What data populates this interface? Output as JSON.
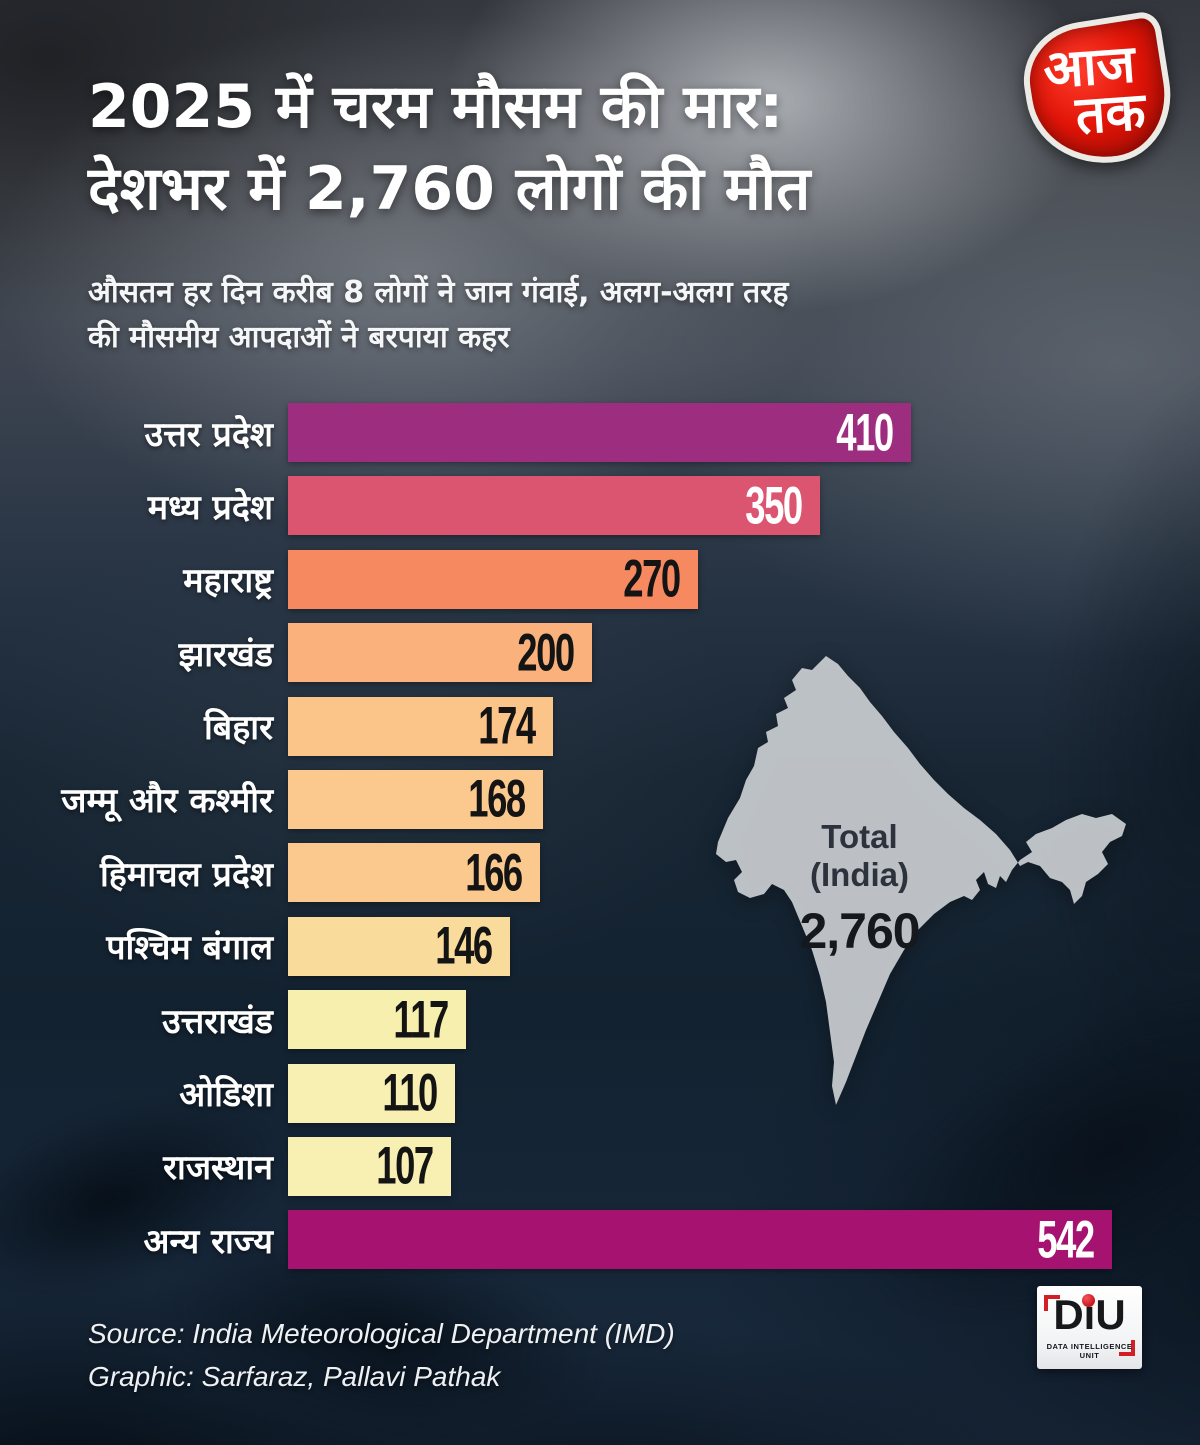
{
  "brand": {
    "line1": "आज",
    "line2": "तक"
  },
  "header": {
    "title_line1": "2025 में चरम मौसम की मार:",
    "title_line2": "देशभर में 2,760 लोगों की मौत",
    "subtitle_line1": "औसतन हर दिन करीब 8 लोगों ने जान गंवाई, अलग-अलग तरह",
    "subtitle_line2": "की मौसमीय आपदाओं ने बरपाया कहर"
  },
  "chart_data": {
    "type": "bar",
    "orientation": "horizontal",
    "title": "2025 में चरम मौसम की मार: देशभर में 2,760 लोगों की मौत",
    "categories": [
      "उत्तर प्रदेश",
      "मध्य प्रदेश",
      "महाराष्ट्र",
      "झारखंड",
      "बिहार",
      "जम्मू और कश्मीर",
      "हिमाचल प्रदेश",
      "पश्चिम बंगाल",
      "उत्तराखंड",
      "ओडिशा",
      "राजस्थान",
      "अन्य राज्य"
    ],
    "values": [
      410,
      350,
      270,
      200,
      174,
      168,
      166,
      146,
      117,
      110,
      107,
      542
    ],
    "bars": [
      {
        "label": "उत्तर प्रदेश",
        "value": 410,
        "display": "410",
        "color": "#9D2E7F",
        "value_color": "#FFFFFF"
      },
      {
        "label": "मध्य प्रदेश",
        "value": 350,
        "display": "350",
        "color": "#DC5570",
        "value_color": "#FFFFFF"
      },
      {
        "label": "महाराष्ट्र",
        "value": 270,
        "display": "270",
        "color": "#F68960",
        "value_color": "#141414"
      },
      {
        "label": "झारखंड",
        "value": 200,
        "display": "200",
        "color": "#FAB17C",
        "value_color": "#141414"
      },
      {
        "label": "बिहार",
        "value": 174,
        "display": "174",
        "color": "#FBC489",
        "value_color": "#141414"
      },
      {
        "label": "जम्मू और कश्मीर",
        "value": 168,
        "display": "168",
        "color": "#FBC98E",
        "value_color": "#141414"
      },
      {
        "label": "हिमाचल प्रदेश",
        "value": 166,
        "display": "166",
        "color": "#FBC98E",
        "value_color": "#141414"
      },
      {
        "label": "पश्चिम बंगाल",
        "value": 146,
        "display": "146",
        "color": "#F9DB9C",
        "value_color": "#141414"
      },
      {
        "label": "उत्तराखंड",
        "value": 117,
        "display": "117",
        "color": "#F7EFAE",
        "value_color": "#141414"
      },
      {
        "label": "ओडिशा",
        "value": 110,
        "display": "110",
        "color": "#F7F0B2",
        "value_color": "#141414"
      },
      {
        "label": "राजस्थान",
        "value": 107,
        "display": "107",
        "color": "#F7F0B2",
        "value_color": "#141414"
      },
      {
        "label": "अन्य राज्य",
        "value": 542,
        "display": "542",
        "color": "#A5126F",
        "value_color": "#FFFFFF"
      }
    ],
    "value_labels_position": "inside-right",
    "grid": false,
    "legend": false,
    "xlim": [
      0,
      560
    ]
  },
  "total_badge": {
    "line1": "Total",
    "line2": "(India)",
    "value": "2,760"
  },
  "footer": {
    "source_line": "Source: India Meteorological Department (IMD)",
    "graphic_line": "Graphic:  Sarfaraz, Pallavi Pathak"
  },
  "diu": {
    "wordmark": "DiU",
    "caption": "DATA INTELLIGENCE UNIT"
  },
  "colors": {
    "accent_magenta": "#9D2E7F",
    "accent_dark_magenta": "#A5126F",
    "background_navy": "#14222F",
    "map_gray": "#C9CDD2",
    "brand_red": "#D8130A"
  }
}
